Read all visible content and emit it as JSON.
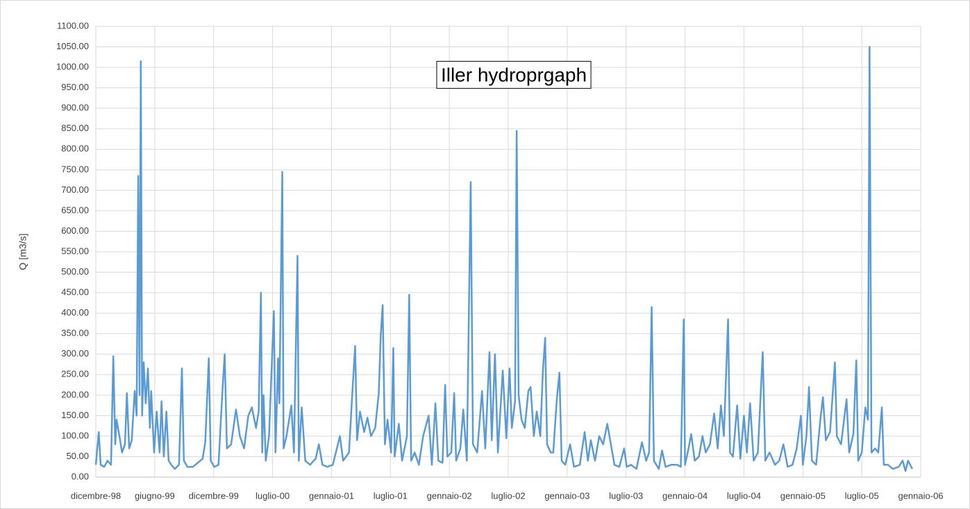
{
  "chart_data": {
    "type": "line",
    "title": "Iller hydroprgaph",
    "y_label": "Q [m3/s]",
    "color": "#5b9bd5",
    "grid": true,
    "xlim": [
      36130,
      38678
    ],
    "xticks": [
      {
        "value": 36130,
        "label": "dicembre-98"
      },
      {
        "value": 36312,
        "label": "giugno-99"
      },
      {
        "value": 36494,
        "label": "dicembre-99"
      },
      {
        "value": 36676,
        "label": "luglio-00"
      },
      {
        "value": 36858,
        "label": "gennaio-01"
      },
      {
        "value": 37040,
        "label": "luglio-01"
      },
      {
        "value": 37222,
        "label": "gennaio-02"
      },
      {
        "value": 37404,
        "label": "luglio-02"
      },
      {
        "value": 37586,
        "label": "gennaio-03"
      },
      {
        "value": 37768,
        "label": "luglio-03"
      },
      {
        "value": 37950,
        "label": "gennaio-04"
      },
      {
        "value": 38132,
        "label": "luglio-04"
      },
      {
        "value": 38314,
        "label": "gennaio-05"
      },
      {
        "value": 38496,
        "label": "luglio-05"
      },
      {
        "value": 38678,
        "label": "gennaio-06"
      }
    ],
    "ylim": [
      0,
      1100
    ],
    "yticks": [
      {
        "value": 0,
        "label": "0.00"
      },
      {
        "value": 50,
        "label": "50.00"
      },
      {
        "value": 100,
        "label": "100.00"
      },
      {
        "value": 150,
        "label": "150.00"
      },
      {
        "value": 200,
        "label": "200.00"
      },
      {
        "value": 250,
        "label": "250.00"
      },
      {
        "value": 300,
        "label": "300.00"
      },
      {
        "value": 350,
        "label": "350.00"
      },
      {
        "value": 400,
        "label": "400.00"
      },
      {
        "value": 450,
        "label": "450.00"
      },
      {
        "value": 500,
        "label": "500.00"
      },
      {
        "value": 550,
        "label": "550.00"
      },
      {
        "value": 600,
        "label": "600.00"
      },
      {
        "value": 650,
        "label": "650.00"
      },
      {
        "value": 700,
        "label": "700.00"
      },
      {
        "value": 750,
        "label": "750.00"
      },
      {
        "value": 800,
        "label": "800.00"
      },
      {
        "value": 850,
        "label": "850.00"
      },
      {
        "value": 900,
        "label": "900.00"
      },
      {
        "value": 950,
        "label": "950.00"
      },
      {
        "value": 1000,
        "label": "1000.00"
      },
      {
        "value": 1050,
        "label": "1050.00"
      },
      {
        "value": 1100,
        "label": "1100.00"
      }
    ],
    "x": [
      36130,
      36139,
      36145,
      36156,
      36166,
      36177,
      36184,
      36190,
      36194,
      36203,
      36211,
      36220,
      36226,
      36233,
      36241,
      36250,
      36256,
      36261,
      36265,
      36269,
      36273,
      36278,
      36284,
      36291,
      36297,
      36301,
      36310,
      36318,
      36327,
      36333,
      36340,
      36348,
      36355,
      36363,
      36374,
      36387,
      36396,
      36402,
      36413,
      36430,
      36445,
      36460,
      36468,
      36479,
      36485,
      36496,
      36509,
      36520,
      36528,
      36535,
      36548,
      36563,
      36575,
      36588,
      36601,
      36612,
      36625,
      36633,
      36640,
      36644,
      36648,
      36655,
      36665,
      36680,
      36685,
      36693,
      36697,
      36706,
      36710,
      36719,
      36734,
      36742,
      36753,
      36757,
      36766,
      36777,
      36792,
      36809,
      36819,
      36830,
      36845,
      36862,
      36884,
      36894,
      36912,
      36922,
      36931,
      36937,
      36946,
      36959,
      36969,
      36980,
      36993,
      37004,
      37010,
      37016,
      37023,
      37031,
      37042,
      37049,
      37053,
      37066,
      37076,
      37091,
      37098,
      37104,
      37115,
      37128,
      37141,
      37158,
      37168,
      37179,
      37188,
      37201,
      37209,
      37216,
      37228,
      37237,
      37243,
      37256,
      37265,
      37276,
      37288,
      37295,
      37308,
      37323,
      37333,
      37346,
      37353,
      37363,
      37372,
      37387,
      37398,
      37408,
      37415,
      37425,
      37430,
      37436,
      37445,
      37455,
      37466,
      37473,
      37483,
      37492,
      37503,
      37511,
      37518,
      37524,
      37535,
      37543,
      37554,
      37562,
      37569,
      37580,
      37595,
      37607,
      37625,
      37640,
      37650,
      37659,
      37672,
      37685,
      37697,
      37710,
      37721,
      37732,
      37747,
      37762,
      37770,
      37783,
      37800,
      37817,
      37830,
      37839,
      37847,
      37854,
      37869,
      37879,
      37890,
      37907,
      37926,
      37937,
      37946,
      37950,
      37961,
      37969,
      37980,
      37993,
      38004,
      38014,
      38027,
      38040,
      38051,
      38061,
      38070,
      38083,
      38089,
      38098,
      38111,
      38121,
      38132,
      38141,
      38151,
      38162,
      38175,
      38190,
      38198,
      38211,
      38228,
      38241,
      38254,
      38267,
      38282,
      38295,
      38308,
      38314,
      38325,
      38333,
      38342,
      38355,
      38368,
      38376,
      38385,
      38398,
      38413,
      38419,
      38432,
      38449,
      38457,
      38470,
      38479,
      38485,
      38496,
      38507,
      38515,
      38520,
      38526,
      38537,
      38547,
      38558,
      38564,
      38577,
      38592,
      38610,
      38622,
      38631,
      38639,
      38652
    ],
    "values": [
      30,
      110,
      30,
      25,
      40,
      30,
      295,
      80,
      140,
      100,
      60,
      80,
      205,
      70,
      90,
      210,
      150,
      735,
      200,
      1015,
      150,
      280,
      180,
      265,
      120,
      210,
      60,
      160,
      60,
      185,
      50,
      160,
      40,
      30,
      20,
      30,
      265,
      40,
      25,
      25,
      35,
      45,
      85,
      290,
      40,
      25,
      30,
      195,
      300,
      70,
      80,
      165,
      100,
      70,
      150,
      170,
      120,
      160,
      450,
      60,
      200,
      40,
      100,
      405,
      60,
      290,
      180,
      745,
      70,
      100,
      175,
      60,
      540,
      40,
      170,
      40,
      30,
      45,
      80,
      30,
      25,
      30,
      100,
      40,
      60,
      200,
      320,
      90,
      160,
      110,
      145,
      100,
      120,
      205,
      345,
      420,
      80,
      140,
      60,
      315,
      50,
      130,
      40,
      100,
      445,
      40,
      60,
      30,
      100,
      150,
      30,
      180,
      40,
      35,
      225,
      50,
      60,
      205,
      40,
      70,
      165,
      40,
      720,
      80,
      60,
      210,
      70,
      305,
      90,
      300,
      60,
      260,
      95,
      265,
      120,
      185,
      845,
      200,
      140,
      120,
      210,
      220,
      100,
      160,
      100,
      260,
      340,
      80,
      60,
      60,
      190,
      255,
      40,
      30,
      80,
      25,
      30,
      110,
      40,
      90,
      40,
      100,
      80,
      130,
      80,
      30,
      25,
      70,
      25,
      30,
      20,
      85,
      40,
      60,
      415,
      40,
      20,
      65,
      25,
      30,
      30,
      25,
      385,
      30,
      70,
      105,
      40,
      50,
      100,
      60,
      80,
      155,
      70,
      175,
      100,
      385,
      60,
      50,
      175,
      45,
      150,
      60,
      180,
      40,
      60,
      305,
      40,
      60,
      30,
      40,
      80,
      25,
      30,
      70,
      150,
      30,
      100,
      220,
      40,
      30,
      140,
      195,
      90,
      110,
      280,
      100,
      80,
      190,
      60,
      105,
      285,
      40,
      60,
      170,
      140,
      1050,
      60,
      70,
      60,
      170,
      30,
      30,
      20,
      25,
      40,
      15,
      40,
      20
    ]
  }
}
